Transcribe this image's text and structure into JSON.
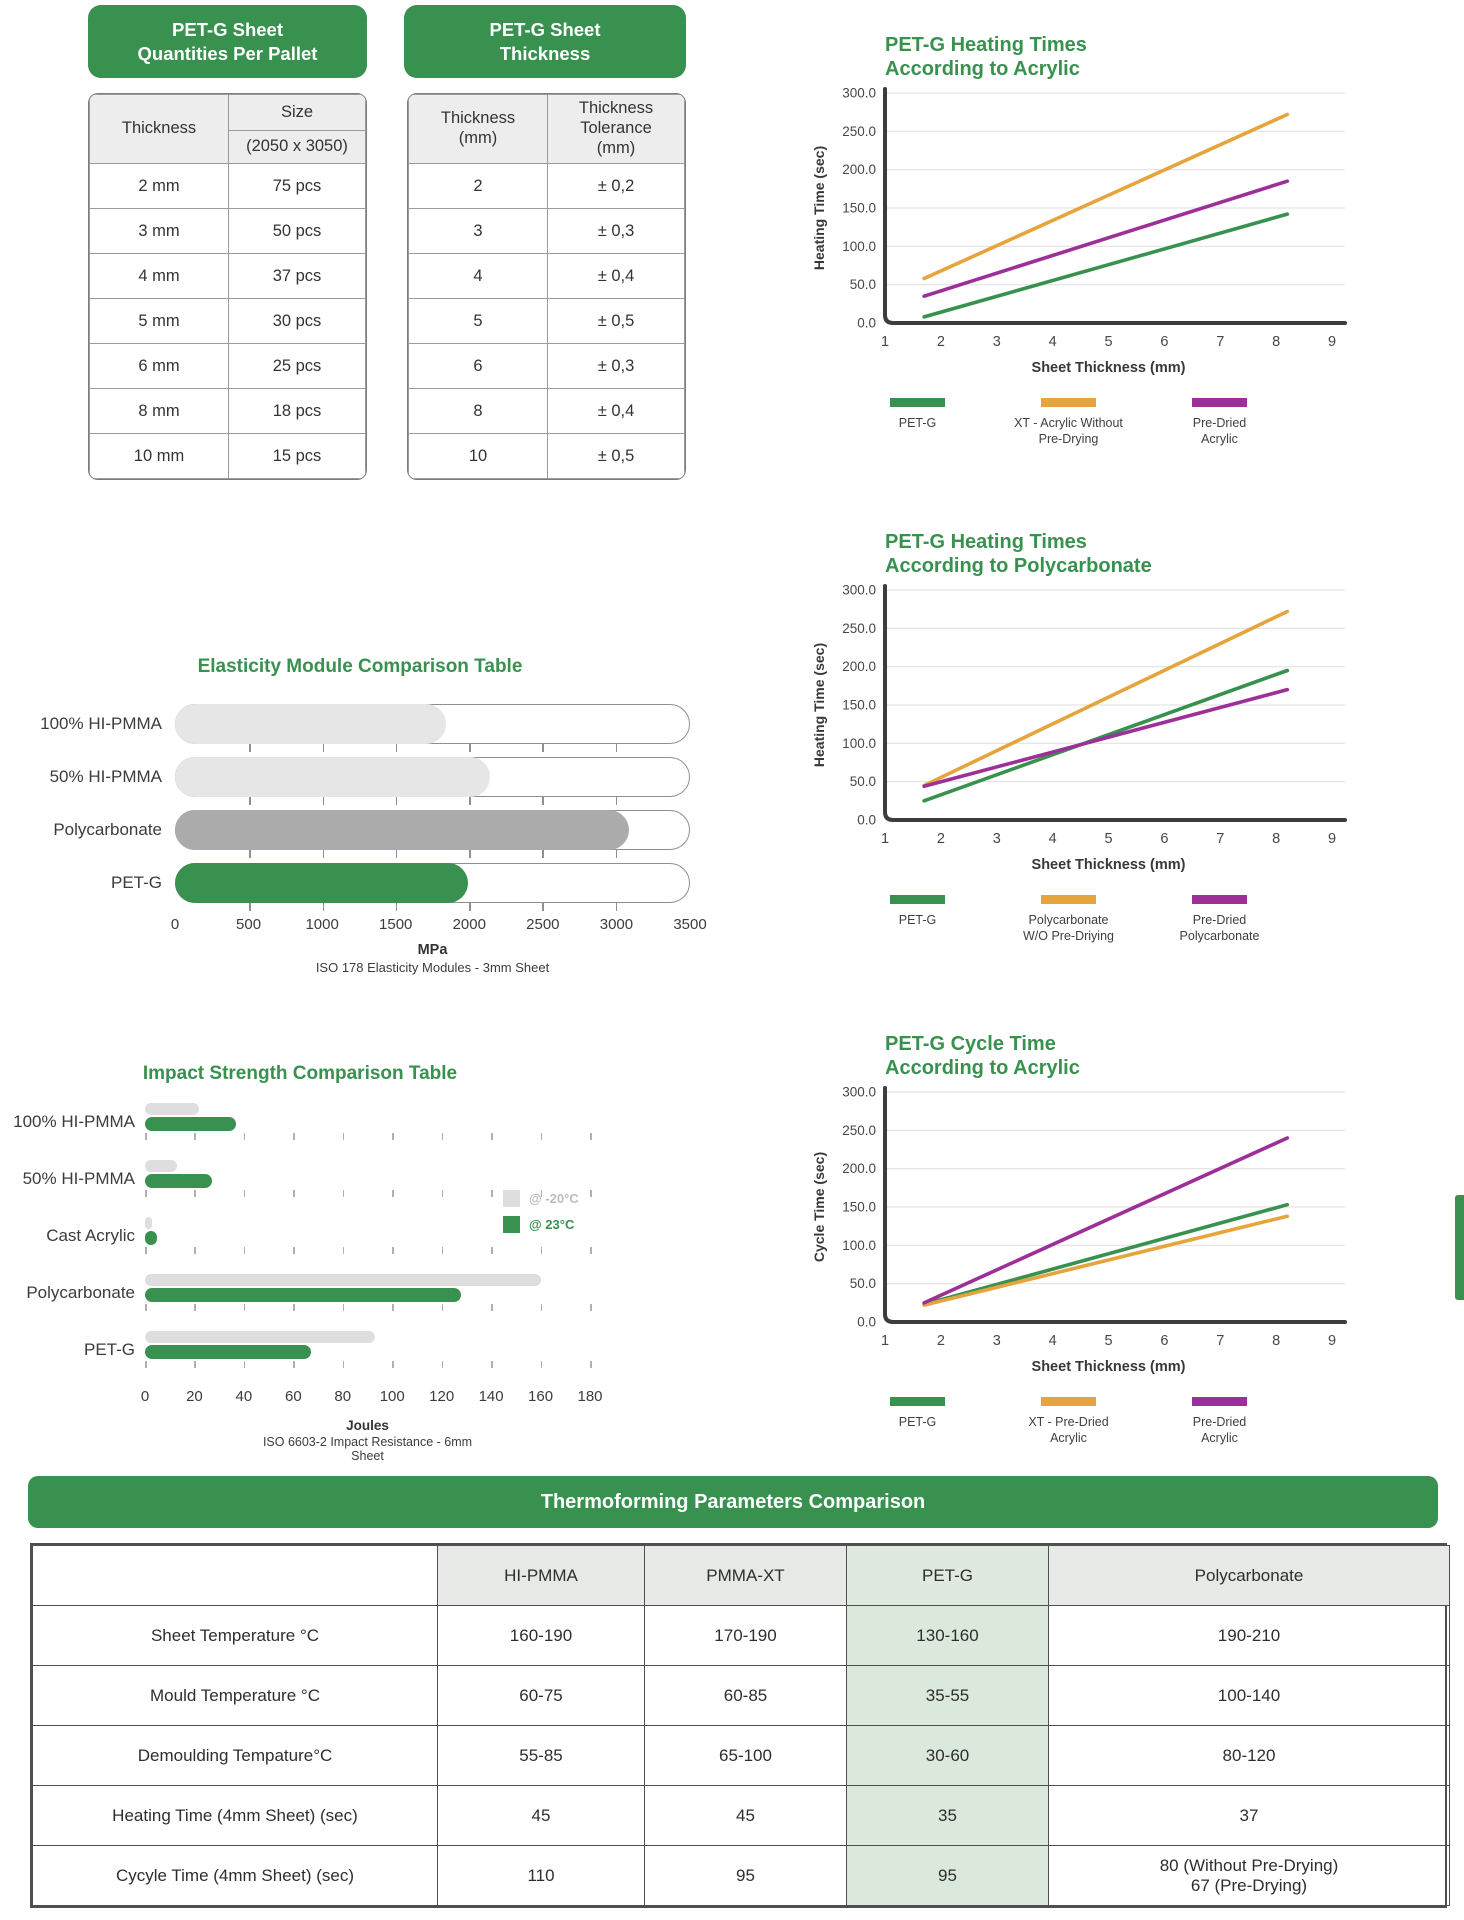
{
  "colors": {
    "green": "#38914f",
    "orange": "#e6a43c",
    "purple": "#9c2f98",
    "elasticity_light_gray": "#e6e6e6",
    "elasticity_dark_gray": "#ababab",
    "impact_gray": "#dedede"
  },
  "pallet_table": {
    "title": "PET-G Sheet\nQuantities Per Pallet",
    "col_thickness": "Thickness",
    "col_size": "Size",
    "col_size_sub": "(2050 x 3050)",
    "rows": [
      [
        "2 mm",
        "75 pcs"
      ],
      [
        "3 mm",
        "50 pcs"
      ],
      [
        "4 mm",
        "37 pcs"
      ],
      [
        "5 mm",
        "30 pcs"
      ],
      [
        "6 mm",
        "25 pcs"
      ],
      [
        "8 mm",
        "18 pcs"
      ],
      [
        "10 mm",
        "15 pcs"
      ]
    ]
  },
  "thickness_table": {
    "title": "PET-G Sheet\nThickness",
    "col_thickness": "Thickness\n(mm)",
    "col_tolerance": "Thickness\nTolerance\n(mm)",
    "rows": [
      [
        "2",
        "± 0,2"
      ],
      [
        "3",
        "± 0,3"
      ],
      [
        "4",
        "± 0,4"
      ],
      [
        "5",
        "± 0,5"
      ],
      [
        "6",
        "± 0,3"
      ],
      [
        "8",
        "± 0,4"
      ],
      [
        "10",
        "± 0,5"
      ]
    ]
  },
  "chart_data": [
    {
      "id": "heating-acrylic",
      "type": "line",
      "title": "PET-G Heating Times\nAccording to Acrylic",
      "xlabel": "Sheet Thickness (mm)",
      "ylabel": "Heating Time (sec)",
      "xlim": [
        1,
        9
      ],
      "ylim": [
        0,
        300
      ],
      "xticks": [
        1,
        2,
        3,
        4,
        5,
        6,
        7,
        8,
        9
      ],
      "ytick_step": 50,
      "grid": true,
      "legend_position": "bottom",
      "series": [
        {
          "name": "PET-G",
          "color_key": "green",
          "x": [
            1.7,
            8.2
          ],
          "y": [
            8,
            142
          ]
        },
        {
          "name": "XT - Acrylic Without\nPre-Drying",
          "color_key": "orange",
          "x": [
            1.7,
            8.2
          ],
          "y": [
            58,
            272
          ]
        },
        {
          "name": "Pre-Dried\nAcrylic",
          "color_key": "purple",
          "x": [
            1.7,
            8.2
          ],
          "y": [
            35,
            185
          ]
        }
      ]
    },
    {
      "id": "heating-polycarbonate",
      "type": "line",
      "title": "PET-G Heating Times\nAccording to Polycarbonate",
      "xlabel": "Sheet Thickness (mm)",
      "ylabel": "Heating Time (sec)",
      "xlim": [
        1,
        9
      ],
      "ylim": [
        0,
        300
      ],
      "xticks": [
        1,
        2,
        3,
        4,
        5,
        6,
        7,
        8,
        9
      ],
      "ytick_step": 50,
      "grid": true,
      "legend_position": "bottom",
      "series": [
        {
          "name": "PET-G",
          "color_key": "green",
          "x": [
            1.7,
            8.2
          ],
          "y": [
            25,
            195
          ]
        },
        {
          "name": "Polycarbonate\nW/O Pre-Driying",
          "color_key": "orange",
          "x": [
            1.7,
            8.2
          ],
          "y": [
            45,
            272
          ]
        },
        {
          "name": "Pre-Dried\nPolycarbonate",
          "color_key": "purple",
          "x": [
            1.7,
            8.2
          ],
          "y": [
            44,
            170
          ]
        }
      ]
    },
    {
      "id": "cycle-acrylic",
      "type": "line",
      "title": "PET-G Cycle Time\nAccording to Acrylic",
      "xlabel": "Sheet Thickness (mm)",
      "ylabel": "Cycle Time (sec)",
      "xlim": [
        1,
        9
      ],
      "ylim": [
        0,
        300
      ],
      "xticks": [
        1,
        2,
        3,
        4,
        5,
        6,
        7,
        8,
        9
      ],
      "ytick_step": 50,
      "grid": true,
      "legend_position": "bottom",
      "series": [
        {
          "name": "PET-G",
          "color_key": "green",
          "x": [
            1.7,
            8.2
          ],
          "y": [
            23,
            153
          ]
        },
        {
          "name": "XT - Pre-Dried\nAcrylic",
          "color_key": "orange",
          "x": [
            1.7,
            8.2
          ],
          "y": [
            22,
            138
          ]
        },
        {
          "name": "Pre-Dried\nAcrylic",
          "color_key": "purple",
          "x": [
            1.7,
            8.2
          ],
          "y": [
            25,
            240
          ]
        }
      ]
    },
    {
      "id": "elasticity",
      "type": "bar",
      "title": "Elasticity Module Comparison Table",
      "categories": [
        "100% HI-PMMA",
        "50% HI-PMMA",
        "Polycarbonate",
        "PET-G"
      ],
      "values": [
        1850,
        2150,
        3100,
        2000
      ],
      "bar_color_keys": [
        "elasticity_light_gray",
        "elasticity_light_gray",
        "elasticity_dark_gray",
        "green"
      ],
      "xlim": [
        0,
        3500
      ],
      "xticks": [
        0,
        500,
        1000,
        1500,
        2000,
        2500,
        3000,
        3500
      ],
      "xlabel": "MPa",
      "caption": "ISO 178 Elasticity Modules - 3mm Sheet",
      "track_outline": true
    },
    {
      "id": "impact",
      "type": "grouped-bar",
      "title": "Impact Strength Comparison Table",
      "categories": [
        "100% HI-PMMA",
        "50% HI-PMMA",
        "Cast Acrylic",
        "Polycarbonate",
        "PET-G"
      ],
      "series": [
        {
          "name": "@ -20°C",
          "color_key": "impact_gray",
          "values": [
            22,
            13,
            3,
            160,
            93
          ]
        },
        {
          "name": "@ 23°C",
          "color_key": "green",
          "values": [
            37,
            27,
            5,
            128,
            67
          ]
        }
      ],
      "xlim": [
        0,
        180
      ],
      "xticks": [
        0,
        20,
        40,
        60,
        80,
        100,
        120,
        140,
        160,
        180
      ],
      "xlabel": "Joules",
      "caption": "ISO 6603-2 Impact Resistance - 6mm\nSheet",
      "legend_position": "right"
    }
  ],
  "thermo_table": {
    "title": "Thermoforming Parameters Comparison",
    "columns": [
      "",
      "HI-PMMA",
      "PMMA-XT",
      "PET-G",
      "Polycarbonate"
    ],
    "highlight_column": "PET-G",
    "rows": [
      {
        "label": "Sheet Temperature °C",
        "values": [
          "160-190",
          "170-190",
          "130-160",
          "190-210"
        ]
      },
      {
        "label": "Mould Temperature °C",
        "values": [
          "60-75",
          "60-85",
          "35-55",
          "100-140"
        ]
      },
      {
        "label": "Demoulding Tempature°C",
        "values": [
          "55-85",
          "65-100",
          "30-60",
          "80-120"
        ]
      },
      {
        "label": "Heating Time (4mm Sheet) (sec)",
        "values": [
          "45",
          "45",
          "35",
          "37"
        ]
      },
      {
        "label": "Cycyle Time (4mm Sheet) (sec)",
        "values": [
          "110",
          "95",
          "95",
          "80 (Without Pre-Drying)\n67 (Pre-Drying)"
        ]
      }
    ]
  }
}
